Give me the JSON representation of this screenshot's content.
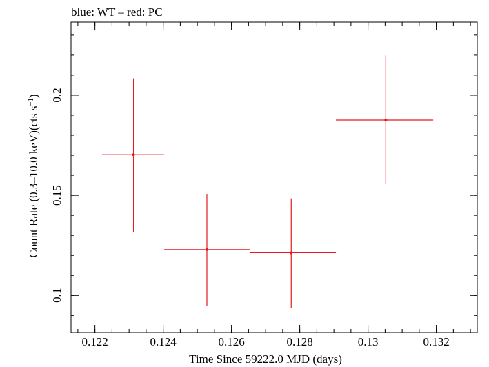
{
  "chart_data": {
    "type": "scatter",
    "title": "blue: WT – red: PC",
    "xlabel": "Time Since 59222.0 MJD (days)",
    "ylabel": "Count Rate (0.3–10.0 keV)(cts s",
    "ylabel_sup": "−1",
    "ylabel_end": ")",
    "xlim": [
      0.1213,
      0.1332
    ],
    "ylim": [
      0.0815,
      0.2365
    ],
    "xticks": [
      {
        "value": 0.122,
        "label": "0.122"
      },
      {
        "value": 0.124,
        "label": "0.124"
      },
      {
        "value": 0.126,
        "label": "0.126"
      },
      {
        "value": 0.128,
        "label": "0.128"
      },
      {
        "value": 0.13,
        "label": "0.13"
      },
      {
        "value": 0.132,
        "label": "0.132"
      }
    ],
    "yticks": [
      {
        "value": 0.1,
        "label": "0.1"
      },
      {
        "value": 0.15,
        "label": "0.15"
      },
      {
        "value": 0.2,
        "label": "0.2"
      }
    ],
    "grid": false,
    "series": [
      {
        "name": "PC",
        "color": "#e8191c",
        "points": [
          {
            "x": 0.12313,
            "xerr_low": 0.12221,
            "xerr_high": 0.12403,
            "y": 0.1703,
            "yerr_low": 0.1318,
            "yerr_high": 0.2084
          },
          {
            "x": 0.12528,
            "xerr_low": 0.12403,
            "xerr_high": 0.12653,
            "y": 0.1229,
            "yerr_low": 0.0948,
            "yerr_high": 0.1507
          },
          {
            "x": 0.12775,
            "xerr_low": 0.12653,
            "xerr_high": 0.12906,
            "y": 0.1213,
            "yerr_low": 0.0938,
            "yerr_high": 0.1484
          },
          {
            "x": 0.13052,
            "xerr_low": 0.12906,
            "xerr_high": 0.13191,
            "y": 0.1876,
            "yerr_low": 0.1557,
            "yerr_high": 0.2199
          }
        ]
      }
    ]
  }
}
